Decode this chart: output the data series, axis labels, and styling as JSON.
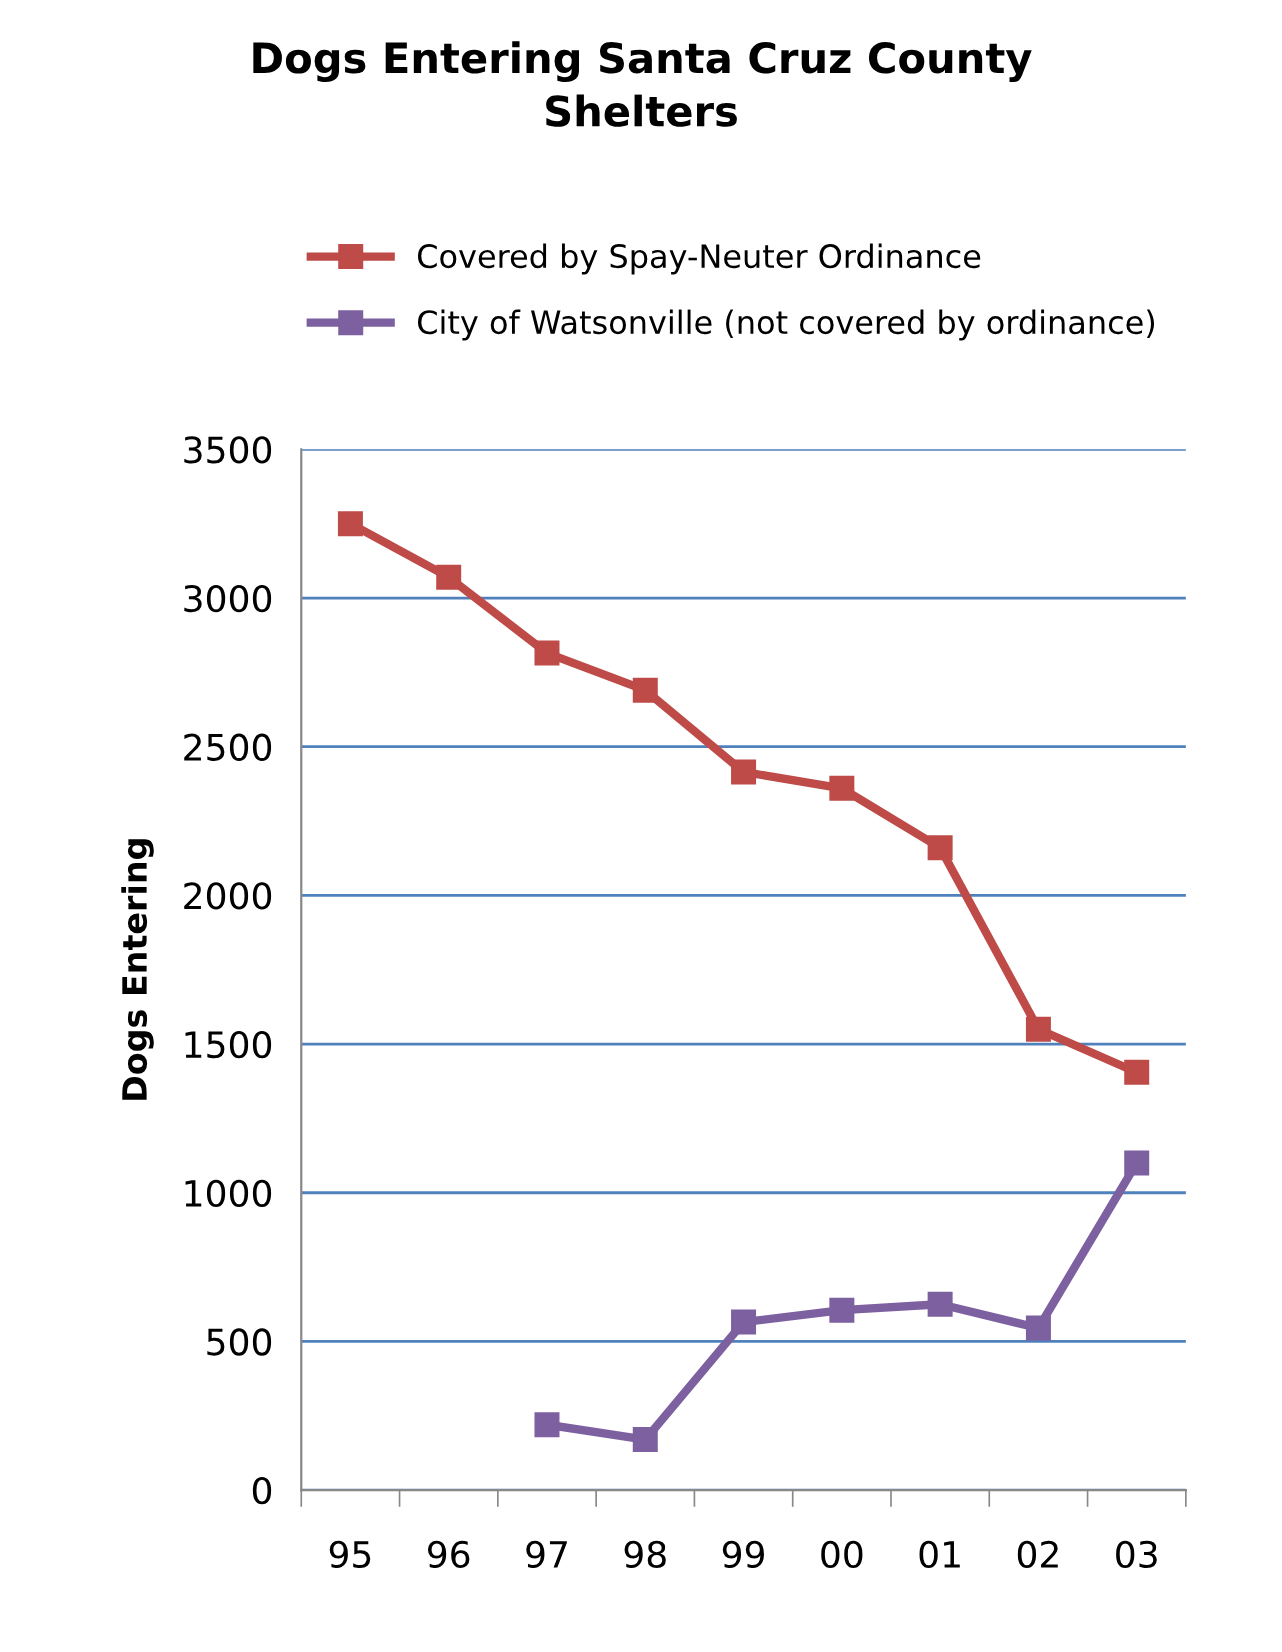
{
  "chart_data": {
    "type": "line",
    "title": "Dogs Entering Santa Cruz County\nShelters",
    "ylabel": "Dogs Entering",
    "categories": [
      "95",
      "96",
      "97",
      "98",
      "99",
      "00",
      "01",
      "02",
      "03"
    ],
    "series": [
      {
        "name": "Covered by Spay-Neuter Ordinance",
        "color": "#be4b48",
        "values": [
          3250,
          3070,
          2815,
          2690,
          2415,
          2360,
          2160,
          1550,
          1405
        ]
      },
      {
        "name": "City of Watsonville (not covered by ordinance)",
        "color": "#7d60a0",
        "values": [
          null,
          null,
          220,
          170,
          565,
          605,
          625,
          545,
          1100
        ]
      }
    ],
    "ylim": [
      0,
      3500
    ],
    "yticks": [
      0,
      500,
      1000,
      1500,
      2000,
      2500,
      3000,
      3500
    ],
    "grid": "y",
    "legend": "top",
    "marker": "square",
    "line_style": "solid"
  }
}
